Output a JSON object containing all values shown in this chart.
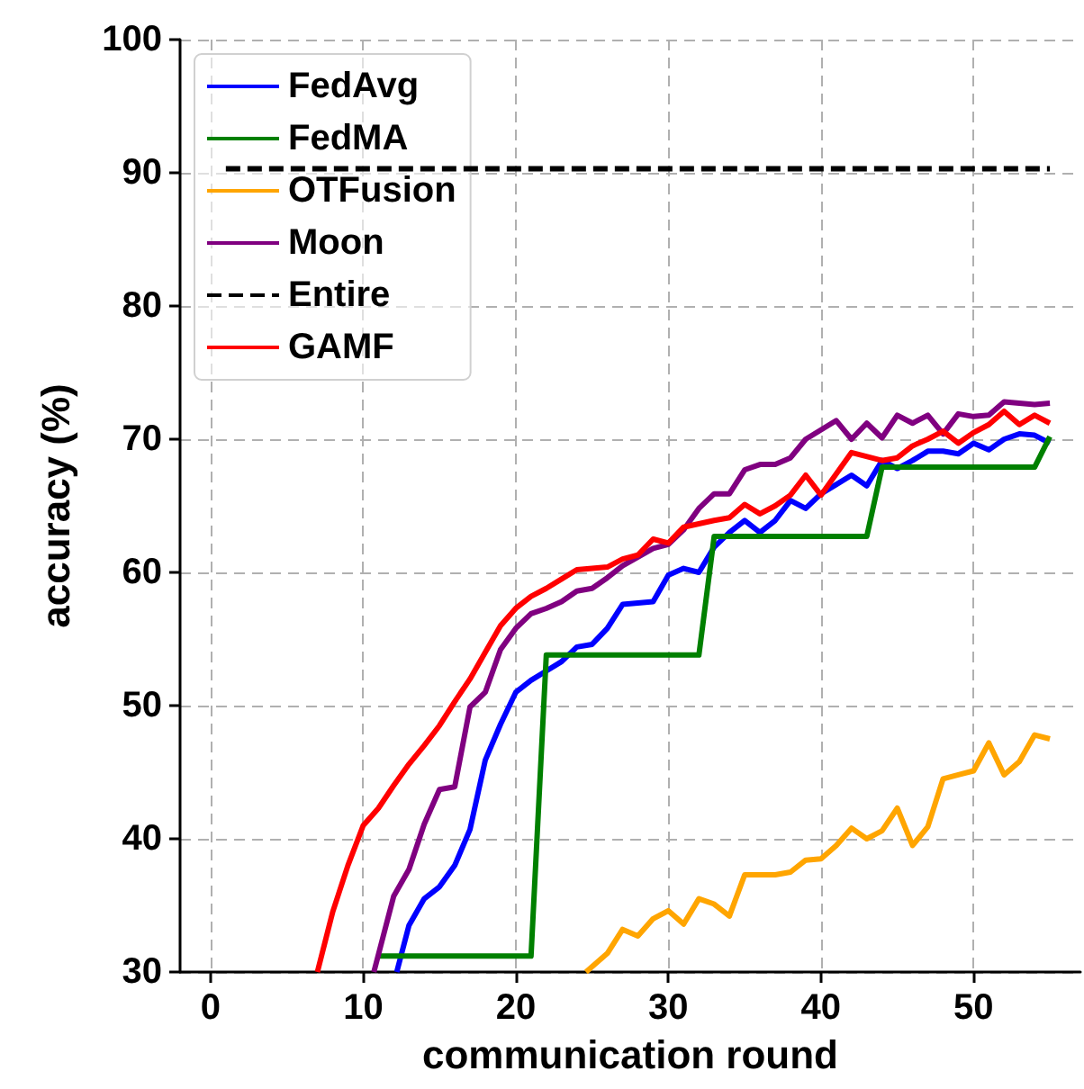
{
  "chart_data": {
    "type": "line",
    "xlabel": "communication round",
    "ylabel": "accuracy (%)",
    "xlim": [
      -2,
      57
    ],
    "xticks": [
      0,
      10,
      20,
      30,
      40,
      50
    ],
    "ylim": [
      30,
      100
    ],
    "yticks": [
      30,
      40,
      50,
      60,
      70,
      80,
      90,
      100
    ],
    "grid": true,
    "legend": "top left",
    "marker": "none",
    "line_style": "solid",
    "series": [
      {
        "name": "FedAvg",
        "color": "#0000ff",
        "x": [
          12.2,
          13,
          14,
          15,
          16,
          17,
          18,
          19,
          20,
          21,
          22,
          23,
          24,
          25,
          26,
          27,
          29,
          30,
          31,
          32,
          33,
          34,
          35,
          36,
          37,
          38,
          39,
          40,
          41,
          42,
          43,
          44,
          45,
          46,
          47,
          48,
          49,
          50,
          51,
          52,
          53,
          54,
          55
        ],
        "values": [
          30,
          33.5,
          35.5,
          36.4,
          38,
          40.7,
          45.9,
          48.6,
          51,
          51.9,
          52.6,
          53.3,
          54.4,
          54.6,
          55.8,
          57.6,
          57.8,
          59.8,
          60.3,
          60,
          61.9,
          63,
          63.9,
          63,
          63.9,
          65.4,
          64.8,
          65.9,
          66.6,
          67.3,
          66.5,
          68.4,
          67.8,
          68.4,
          69.1,
          69.1,
          68.9,
          69.7,
          69.2,
          70,
          70.4,
          70.3,
          69.7
        ]
      },
      {
        "name": "FedMA",
        "color": "#008000",
        "x": [
          11,
          21,
          22,
          32,
          33,
          43,
          44,
          54,
          55
        ],
        "values": [
          31.2,
          31.2,
          53.8,
          53.8,
          62.7,
          62.7,
          67.9,
          67.9,
          70.2
        ]
      },
      {
        "name": "OTFusion",
        "color": "#ffa500",
        "x": [
          24.6,
          26,
          27,
          28,
          29,
          30,
          31,
          32,
          33,
          34,
          35,
          36,
          37,
          38,
          39,
          40,
          41,
          42,
          43,
          44,
          45,
          46,
          47,
          48,
          49,
          50,
          51,
          52,
          53,
          54,
          55
        ],
        "values": [
          30,
          31.4,
          33.2,
          32.7,
          34,
          34.6,
          33.6,
          35.5,
          35.1,
          34.2,
          37.3,
          37.3,
          37.3,
          37.5,
          38.4,
          38.5,
          39.5,
          40.8,
          40,
          40.6,
          42.3,
          39.5,
          40.9,
          44.5,
          44.8,
          45.1,
          47.2,
          44.8,
          45.8,
          47.8,
          47.5
        ]
      },
      {
        "name": "Moon",
        "color": "#800080",
        "x": [
          10.7,
          12,
          13,
          14,
          15,
          16,
          17,
          18,
          19,
          20,
          21,
          22,
          23,
          24,
          25,
          26,
          27,
          29,
          30,
          31,
          32,
          33,
          34,
          35,
          36,
          37,
          38,
          39,
          41,
          42,
          43,
          44,
          45,
          46,
          47,
          48,
          49,
          50,
          51,
          52,
          54,
          55
        ],
        "values": [
          30,
          35.7,
          37.7,
          41.1,
          43.7,
          43.9,
          49.9,
          51,
          54.2,
          55.8,
          56.9,
          57.3,
          57.8,
          58.6,
          58.8,
          59.6,
          60.5,
          61.8,
          62.1,
          63.2,
          64.8,
          65.9,
          65.9,
          67.7,
          68.1,
          68.1,
          68.6,
          70,
          71.4,
          70,
          71.2,
          70.1,
          71.8,
          71.2,
          71.8,
          70.4,
          71.9,
          71.7,
          71.8,
          72.8,
          72.6,
          72.7
        ]
      },
      {
        "name": "Entire",
        "color": "#000000",
        "line_style": "dashed",
        "x": [
          1,
          55
        ],
        "values": [
          90.3,
          90.3
        ]
      },
      {
        "name": "GAMF",
        "color": "#ff0000",
        "x": [
          7,
          8,
          9,
          10,
          11,
          12,
          13,
          14,
          15,
          16,
          17,
          18,
          19,
          20,
          21,
          22,
          23,
          24,
          25,
          26,
          27,
          28,
          29,
          30,
          31,
          33,
          34,
          35,
          36,
          37,
          38,
          39,
          40,
          42,
          44,
          45,
          46,
          47,
          48,
          49,
          50,
          51,
          52,
          53,
          54,
          55
        ],
        "values": [
          30,
          34.5,
          38,
          41,
          42.3,
          44,
          45.6,
          47,
          48.5,
          50.3,
          52,
          54,
          56,
          57.3,
          58.2,
          58.8,
          59.5,
          60.2,
          60.3,
          60.4,
          61,
          61.3,
          62.5,
          62.2,
          63.4,
          63.9,
          64.1,
          65.1,
          64.4,
          65,
          65.8,
          67.3,
          65.8,
          69,
          68.4,
          68.6,
          69.5,
          70,
          70.6,
          69.7,
          70.5,
          71.1,
          72.1,
          71.1,
          71.8,
          71.2
        ]
      }
    ]
  }
}
